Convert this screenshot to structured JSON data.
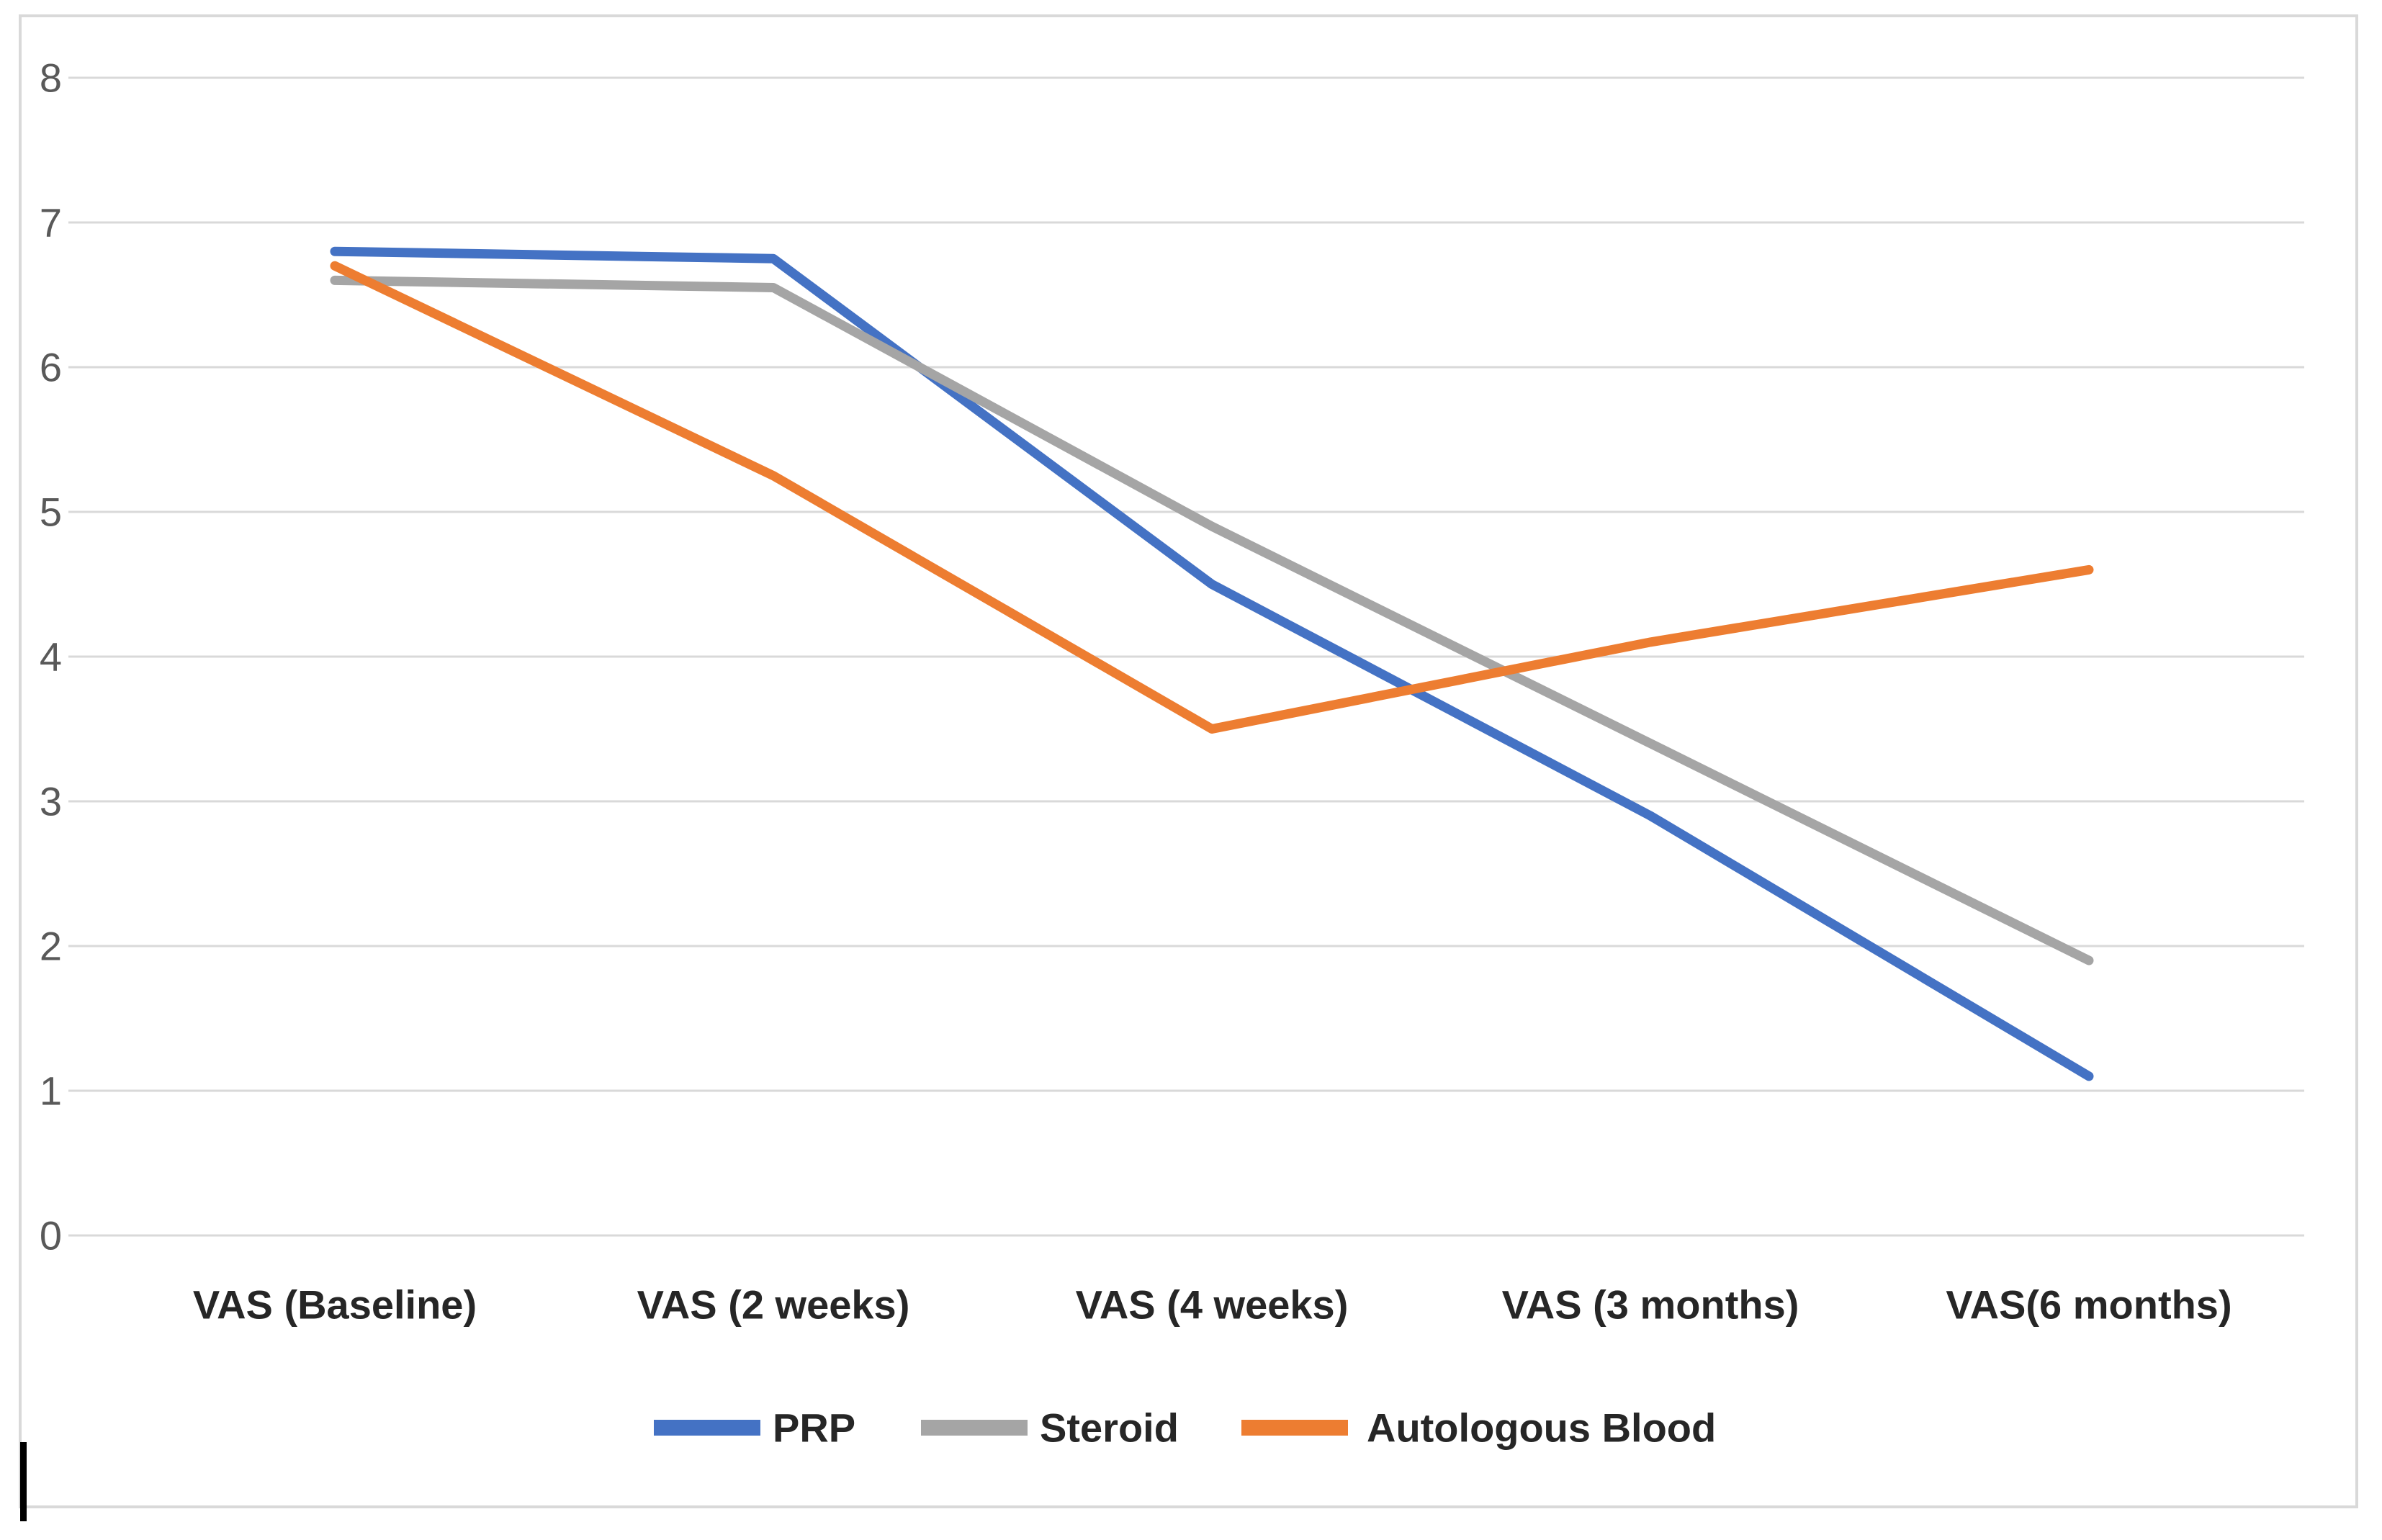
{
  "chart_data": {
    "type": "line",
    "title": "",
    "xlabel": "",
    "ylabel": "",
    "categories": [
      "VAS (Baseline)",
      "VAS (2 weeks)",
      "VAS (4 weeks)",
      "VAS (3 months)",
      "VAS(6 months)"
    ],
    "series": [
      {
        "name": "PRP",
        "color": "#4472C4",
        "values": [
          6.8,
          6.75,
          4.5,
          2.9,
          1.1
        ]
      },
      {
        "name": "Steroid",
        "color": "#A5A5A5",
        "values": [
          6.6,
          6.55,
          4.9,
          3.4,
          1.9
        ]
      },
      {
        "name": "Autologous Blood",
        "color": "#ED7D31",
        "values": [
          6.7,
          5.25,
          3.5,
          4.1,
          4.6
        ]
      }
    ],
    "ylim": [
      0,
      8
    ],
    "yticks": [
      8,
      7,
      6,
      5,
      4,
      3,
      2,
      1,
      0
    ],
    "grid": true,
    "legend_position": "bottom"
  },
  "colors": {
    "background": "#FFFFFF",
    "frame_border": "#D9D9D9",
    "gridline": "#D9D9D9",
    "y_tick_label": "#595959",
    "x_tick_label": "#262626",
    "legend_text": "#262626",
    "cursor_artifact": "#000000"
  }
}
